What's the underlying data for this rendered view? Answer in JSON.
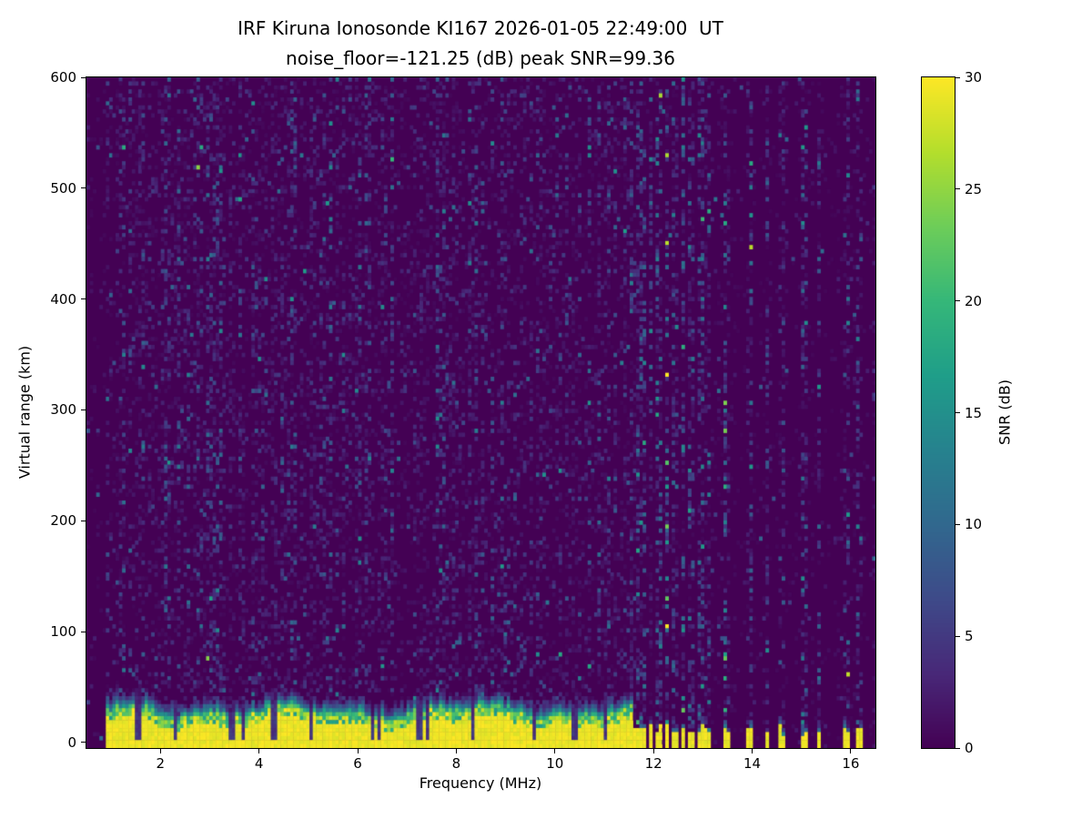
{
  "chart_data": {
    "type": "heatmap",
    "title": "IRF Kiruna Ionosonde KI167 2026-01-05 22:49:00  UT",
    "subtitle": "noise_floor=-121.25 (dB) peak SNR=99.36",
    "station": "IRF Kiruna Ionosonde KI167",
    "timestamp_ut": "2026-01-05 22:49:00",
    "noise_floor_db": -121.25,
    "peak_snr_db": 99.36,
    "xlabel": "Frequency (MHz)",
    "ylabel": "Virtual range (km)",
    "colorbar_label": "SNR (dB)",
    "colormap": "viridis",
    "grid": false,
    "xlim": [
      0.5,
      16.5
    ],
    "ylim": [
      -5,
      600
    ],
    "clim": [
      0,
      30
    ],
    "xticks": [
      2,
      4,
      6,
      8,
      10,
      12,
      14,
      16
    ],
    "yticks": [
      0,
      100,
      200,
      300,
      400,
      500,
      600
    ],
    "colorbar_ticks": [
      0,
      5,
      10,
      15,
      20,
      25,
      30
    ],
    "features": {
      "ground_clutter_band": {
        "freq_start_mhz": 0.9,
        "freq_end_mhz": 11.58,
        "mean_top_km": 28,
        "snr_db": 30
      },
      "clutter_notch_freqs_mhz": [
        1.55,
        2.3,
        3.45,
        3.7,
        4.3,
        5.05,
        6.3,
        6.45,
        7.25,
        7.4,
        8.35,
        9.6,
        10.4,
        11.0
      ],
      "sparse_bar_freqs_mhz": [
        11.65,
        11.8,
        11.95,
        12.1,
        12.27,
        12.42,
        12.6,
        12.78,
        12.95,
        13.1,
        13.5,
        13.93,
        14.3,
        14.58,
        15.05,
        15.35,
        15.9,
        16.15
      ],
      "sparse_bar_top_km": 14,
      "background_noise": "sparse speckle 0-12 dB over 0 dB floor, faint vertical RFI striping above 11.6 MHz"
    }
  }
}
